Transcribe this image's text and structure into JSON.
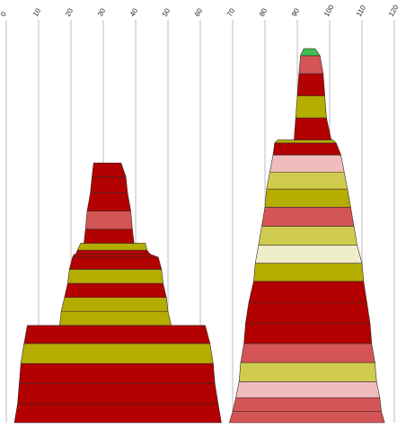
{
  "chart_data": {
    "type": "area",
    "title": "",
    "xlabel": "",
    "ylabel": "",
    "x_axis": {
      "position": "top",
      "range": [
        0,
        120
      ],
      "ticks": [
        0,
        10,
        20,
        30,
        40,
        50,
        60,
        70,
        80,
        90,
        100,
        110,
        120
      ],
      "tick_labels": [
        "0",
        "10",
        "20",
        "30",
        "40",
        "50",
        "60",
        "70",
        "80",
        "90",
        "100",
        "110",
        "120"
      ],
      "grid": true
    },
    "y_axis": {
      "range": [
        0,
        100
      ]
    },
    "legend": "none",
    "palette": {
      "red": "#b30000",
      "light_red": "#d45555",
      "olive": "#b5ad00",
      "light_olive": "#d0cc50",
      "cream": "#eeeeca",
      "pink": "#f0bcbc",
      "green": "#3fbf50"
    },
    "stacks": [
      {
        "bands": [
          {
            "y0": 0.0,
            "y1": 4.75,
            "x_left0": 2.5,
            "x_right0": 66.5,
            "x_left1": 3.5,
            "x_right1": 65.5,
            "color": "red"
          },
          {
            "y0": 4.75,
            "y1": 9.75,
            "x_left0": 3.5,
            "x_right0": 65.5,
            "x_left1": 4.0,
            "x_right1": 64.5,
            "color": "red"
          },
          {
            "y0": 9.75,
            "y1": 14.75,
            "x_left0": 4.0,
            "x_right0": 64.5,
            "x_left1": 4.5,
            "x_right1": 64.0,
            "color": "red"
          },
          {
            "y0": 14.75,
            "y1": 19.75,
            "x_left0": 4.5,
            "x_right0": 64.0,
            "x_left1": 5.5,
            "x_right1": 63.0,
            "color": "olive"
          },
          {
            "y0": 19.75,
            "y1": 24.25,
            "x_left0": 5.5,
            "x_right0": 63.0,
            "x_left1": 6.5,
            "x_right1": 61.5,
            "color": "red"
          },
          {
            "y0": 24.25,
            "y1": 27.75,
            "x_left0": 16.5,
            "x_right0": 51.0,
            "x_left1": 17.0,
            "x_right1": 50.0,
            "color": "olive"
          },
          {
            "y0": 27.75,
            "y1": 31.25,
            "x_left0": 17.0,
            "x_right0": 50.0,
            "x_left1": 18.0,
            "x_right1": 49.5,
            "color": "olive"
          },
          {
            "y0": 31.25,
            "y1": 34.75,
            "x_left0": 18.0,
            "x_right0": 49.5,
            "x_left1": 19.0,
            "x_right1": 48.5,
            "color": "red"
          },
          {
            "y0": 34.75,
            "y1": 38.25,
            "x_left0": 19.0,
            "x_right0": 48.5,
            "x_left1": 19.5,
            "x_right1": 48.0,
            "color": "olive"
          },
          {
            "y0": 38.25,
            "y1": 41.25,
            "x_left0": 19.5,
            "x_right0": 48.0,
            "x_left1": 20.5,
            "x_right1": 47.0,
            "color": "red"
          },
          {
            "y0": 41.25,
            "y1": 42.0,
            "x_left0": 20.5,
            "x_right0": 47.0,
            "x_left1": 21.0,
            "x_right1": 44.5,
            "color": "red"
          },
          {
            "y0": 42.0,
            "y1": 43.0,
            "x_left0": 21.5,
            "x_right0": 44.5,
            "x_left1": 22.0,
            "x_right1": 43.5,
            "color": "red"
          },
          {
            "y0": 43.0,
            "y1": 44.75,
            "x_left0": 22.0,
            "x_right0": 43.5,
            "x_left1": 23.0,
            "x_right1": 43.0,
            "color": "olive"
          },
          {
            "y0": 44.75,
            "y1": 48.25,
            "x_left0": 24.0,
            "x_right0": 39.5,
            "x_left1": 24.5,
            "x_right1": 39.0,
            "color": "red"
          },
          {
            "y0": 48.25,
            "y1": 52.75,
            "x_left0": 24.5,
            "x_right0": 39.0,
            "x_left1": 25.0,
            "x_right1": 38.5,
            "color": "light_red"
          },
          {
            "y0": 52.75,
            "y1": 57.25,
            "x_left0": 25.0,
            "x_right0": 38.5,
            "x_left1": 26.0,
            "x_right1": 37.5,
            "color": "red"
          },
          {
            "y0": 57.25,
            "y1": 61.25,
            "x_left0": 26.0,
            "x_right0": 37.5,
            "x_left1": 26.5,
            "x_right1": 37.0,
            "color": "red"
          },
          {
            "y0": 61.25,
            "y1": 64.75,
            "x_left0": 26.5,
            "x_right0": 37.0,
            "x_left1": 27.0,
            "x_right1": 35.5,
            "color": "red"
          }
        ]
      },
      {
        "bands": [
          {
            "y0": 0.0,
            "y1": 2.75,
            "x_left0": 69.0,
            "x_right0": 117.0,
            "x_left1": 70.0,
            "x_right1": 116.0,
            "color": "light_red"
          },
          {
            "y0": 2.75,
            "y1": 6.25,
            "x_left0": 70.0,
            "x_right0": 116.0,
            "x_left1": 71.0,
            "x_right1": 115.5,
            "color": "light_red"
          },
          {
            "y0": 6.25,
            "y1": 10.25,
            "x_left0": 71.0,
            "x_right0": 115.5,
            "x_left1": 72.0,
            "x_right1": 114.5,
            "color": "pink"
          },
          {
            "y0": 10.25,
            "y1": 15.0,
            "x_left0": 72.0,
            "x_right0": 114.5,
            "x_left1": 72.5,
            "x_right1": 114.0,
            "color": "light_olive"
          },
          {
            "y0": 15.0,
            "y1": 19.75,
            "x_left0": 72.5,
            "x_right0": 114.0,
            "x_left1": 73.5,
            "x_right1": 113.0,
            "color": "light_red"
          },
          {
            "y0": 19.75,
            "y1": 24.75,
            "x_left0": 73.5,
            "x_right0": 113.0,
            "x_left1": 74.0,
            "x_right1": 112.5,
            "color": "red"
          },
          {
            "y0": 24.75,
            "y1": 30.0,
            "x_left0": 74.0,
            "x_right0": 112.5,
            "x_left1": 75.0,
            "x_right1": 111.5,
            "color": "red"
          },
          {
            "y0": 30.0,
            "y1": 35.25,
            "x_left0": 75.0,
            "x_right0": 111.5,
            "x_left1": 76.5,
            "x_right1": 110.5,
            "color": "red"
          },
          {
            "y0": 35.25,
            "y1": 39.75,
            "x_left0": 76.5,
            "x_right0": 110.5,
            "x_left1": 77.0,
            "x_right1": 110.0,
            "color": "olive"
          },
          {
            "y0": 39.75,
            "y1": 44.25,
            "x_left0": 77.0,
            "x_right0": 110.0,
            "x_left1": 78.0,
            "x_right1": 108.5,
            "color": "cream"
          },
          {
            "y0": 44.25,
            "y1": 49.0,
            "x_left0": 78.0,
            "x_right0": 108.5,
            "x_left1": 79.0,
            "x_right1": 107.5,
            "color": "light_olive"
          },
          {
            "y0": 49.0,
            "y1": 53.75,
            "x_left0": 79.0,
            "x_right0": 107.5,
            "x_left1": 80.0,
            "x_right1": 106.5,
            "color": "light_red"
          },
          {
            "y0": 53.75,
            "y1": 58.25,
            "x_left0": 80.0,
            "x_right0": 106.5,
            "x_left1": 80.5,
            "x_right1": 105.5,
            "color": "olive"
          },
          {
            "y0": 58.25,
            "y1": 62.5,
            "x_left0": 80.5,
            "x_right0": 105.5,
            "x_left1": 81.5,
            "x_right1": 104.5,
            "color": "light_olive"
          },
          {
            "y0": 62.5,
            "y1": 66.75,
            "x_left0": 81.5,
            "x_right0": 104.5,
            "x_left1": 82.5,
            "x_right1": 103.5,
            "color": "pink"
          },
          {
            "y0": 66.75,
            "y1": 69.75,
            "x_left0": 82.5,
            "x_right0": 103.5,
            "x_left1": 83.0,
            "x_right1": 102.0,
            "color": "red"
          },
          {
            "y0": 69.75,
            "y1": 70.5,
            "x_left0": 83.0,
            "x_right0": 102.0,
            "x_left1": 84.0,
            "x_right1": 101.0,
            "color": "olive"
          },
          {
            "y0": 70.5,
            "y1": 76.0,
            "x_left0": 89.0,
            "x_right0": 100.5,
            "x_left1": 89.5,
            "x_right1": 99.0,
            "color": "red"
          },
          {
            "y0": 76.0,
            "y1": 81.5,
            "x_left0": 89.5,
            "x_right0": 99.0,
            "x_left1": 90.0,
            "x_right1": 98.5,
            "color": "olive"
          },
          {
            "y0": 81.5,
            "y1": 87.0,
            "x_left0": 90.0,
            "x_right0": 98.5,
            "x_left1": 90.5,
            "x_right1": 98.0,
            "color": "red"
          },
          {
            "y0": 87.0,
            "y1": 91.5,
            "x_left0": 90.5,
            "x_right0": 98.0,
            "x_left1": 91.0,
            "x_right1": 97.0,
            "color": "light_red"
          },
          {
            "y0": 91.5,
            "y1": 93.25,
            "x_left0": 91.0,
            "x_right0": 97.0,
            "x_left1": 92.0,
            "x_right1": 95.5,
            "color": "green"
          }
        ]
      }
    ]
  }
}
